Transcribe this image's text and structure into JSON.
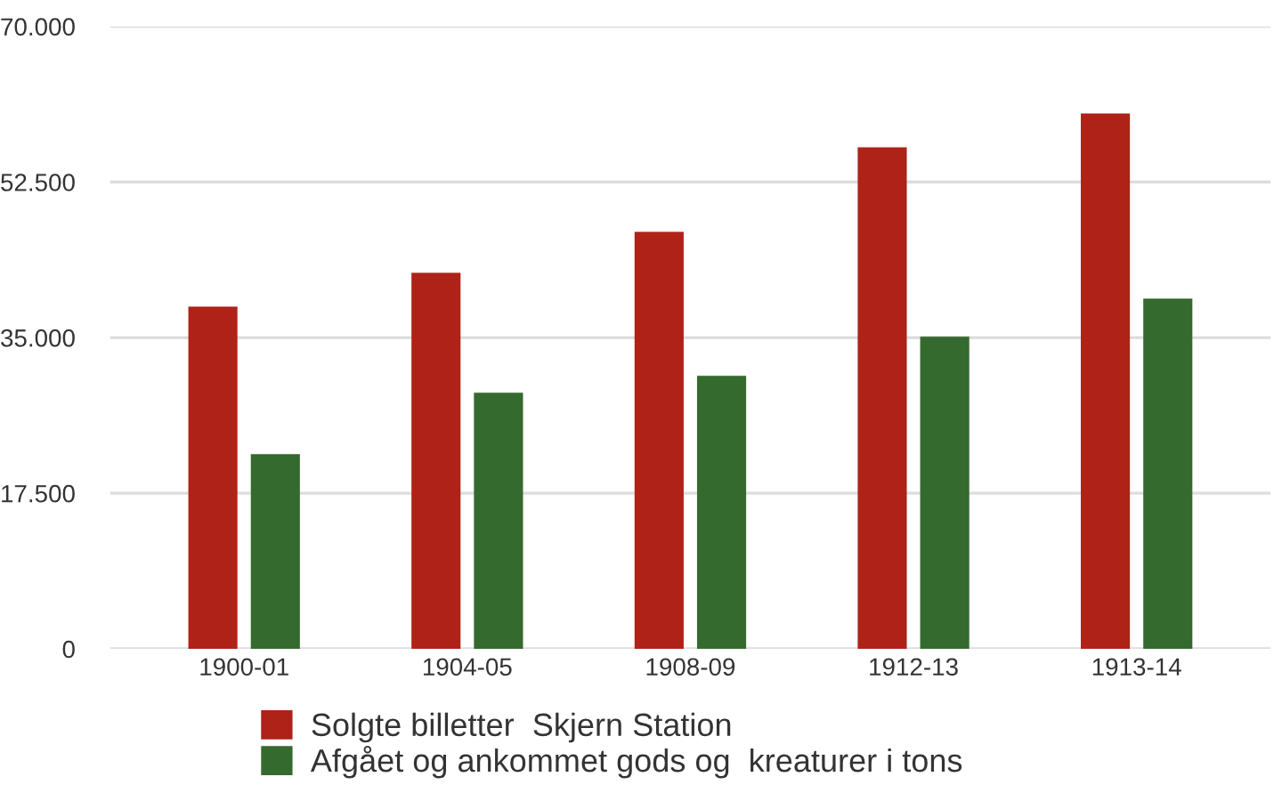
{
  "chart_data": {
    "type": "bar",
    "categories": [
      "1900-01",
      "1904-05",
      "1908-09",
      "1912-13",
      "1913-14"
    ],
    "series": [
      {
        "name": "Solgte billetter  Skjern Station",
        "color": "#ae2218",
        "values": [
          38500,
          42300,
          46900,
          56400,
          60200
        ]
      },
      {
        "name": "Afgået og ankommet gods og  kreaturer i tons",
        "color": "#346a2e",
        "values": [
          21900,
          28800,
          30700,
          35100,
          39400
        ]
      }
    ],
    "ylim": [
      0,
      70000
    ],
    "yticks": [
      {
        "value": 0,
        "label": "0"
      },
      {
        "value": 17500,
        "label": "17.500"
      },
      {
        "value": 35000,
        "label": "35.000"
      },
      {
        "value": 52500,
        "label": "52.500"
      },
      {
        "value": 70000,
        "label": "70.000"
      }
    ],
    "grid": "y",
    "legend": "bottom"
  }
}
